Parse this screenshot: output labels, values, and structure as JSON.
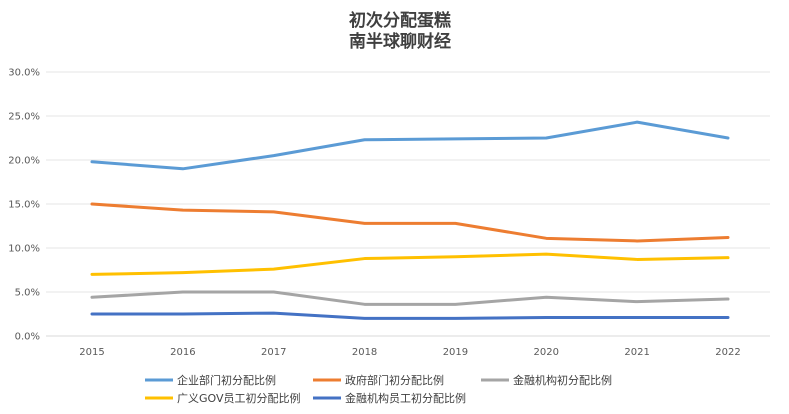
{
  "chart_data": {
    "type": "line",
    "title": "初次分配蛋糕",
    "subtitle": "南半球聊财经",
    "xlabel": "",
    "ylabel": "",
    "categories": [
      "2015",
      "2016",
      "2017",
      "2018",
      "2019",
      "2020",
      "2021",
      "2022"
    ],
    "y_ticks": [
      "0.0%",
      "5.0%",
      "10.0%",
      "15.0%",
      "20.0%",
      "25.0%",
      "30.0%"
    ],
    "ylim": [
      0,
      30
    ],
    "grid": true,
    "legend_position": "bottom",
    "series": [
      {
        "name": "企业部门初分配比例",
        "color": "#5b9bd5",
        "values": [
          19.8,
          19.0,
          20.5,
          22.3,
          22.4,
          22.5,
          24.3,
          22.5
        ]
      },
      {
        "name": "政府部门初分配比例",
        "color": "#ed7d31",
        "values": [
          15.0,
          14.3,
          14.1,
          12.8,
          12.8,
          11.1,
          10.8,
          11.2
        ]
      },
      {
        "name": "金融机构初分配比例",
        "color": "#a5a5a5",
        "values": [
          4.4,
          5.0,
          5.0,
          3.6,
          3.6,
          4.4,
          3.9,
          4.2
        ]
      },
      {
        "name": "广义GOV员工初分配比例",
        "color": "#ffc000",
        "values": [
          7.0,
          7.2,
          7.6,
          8.8,
          9.0,
          9.3,
          8.7,
          8.9
        ]
      },
      {
        "name": "金融机构员工初分配比例",
        "color": "#4472c4",
        "values": [
          2.5,
          2.5,
          2.6,
          2.0,
          2.0,
          2.1,
          2.1,
          2.1
        ]
      }
    ]
  }
}
